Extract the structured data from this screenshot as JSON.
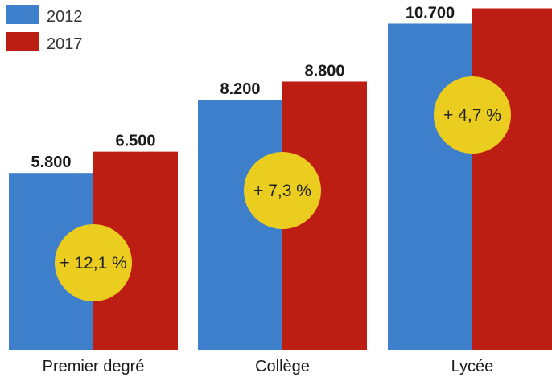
{
  "chart_data": {
    "type": "bar",
    "categories": [
      "Premier degré",
      "Collège",
      "Lycée"
    ],
    "series": [
      {
        "name": "2012",
        "values": [
          5800,
          8200,
          10700
        ],
        "labels": [
          "5.800",
          "8.200",
          "10.700"
        ],
        "color": "#3d7fcb"
      },
      {
        "name": "2017",
        "values": [
          6500,
          8800,
          11200
        ],
        "labels": [
          "6.500",
          "8.800",
          ""
        ],
        "color": "#bd1e13"
      }
    ],
    "annotations": [
      "+ 12,1 %",
      "+ 7,3 %",
      "+ 4,7 %"
    ],
    "annotation_color": "#ebcd20",
    "legend_position": "top-left",
    "grid": false
  }
}
